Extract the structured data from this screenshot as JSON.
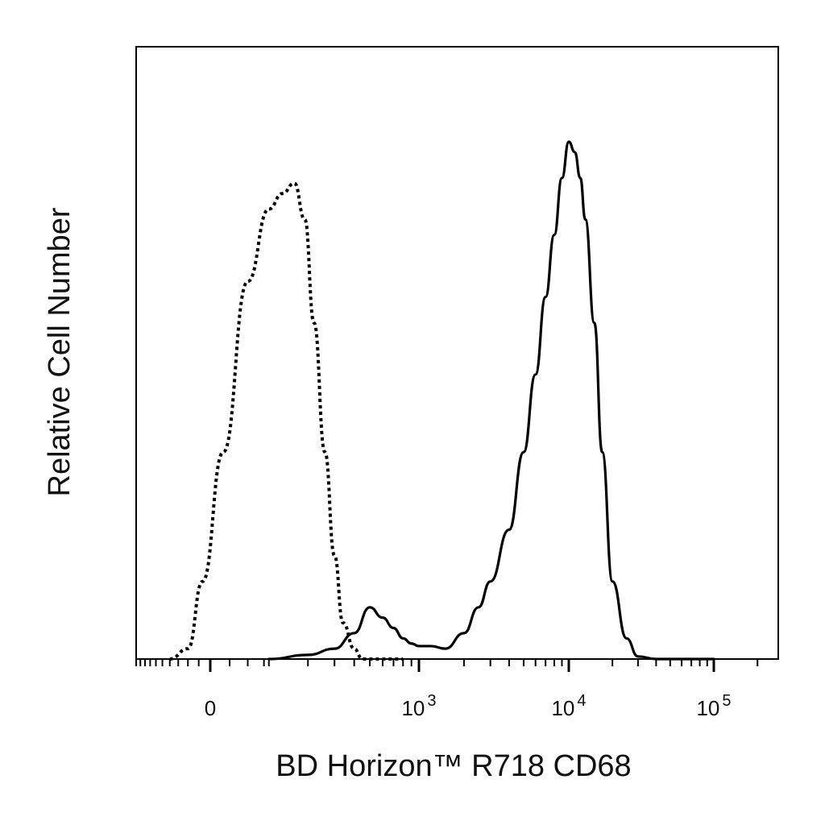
{
  "chart_data": {
    "type": "line",
    "title": "",
    "xlabel": "BD Horizon™ R718 CD68",
    "ylabel": "Relative Cell Number",
    "x_scale": "biexponential",
    "xlim": [
      -300,
      200000
    ],
    "ylim": [
      0,
      1
    ],
    "grid": false,
    "x_tick_labels": [
      {
        "value": 0,
        "base": "0",
        "exp": ""
      },
      {
        "value": 1000,
        "base": "10",
        "exp": "3"
      },
      {
        "value": 10000,
        "base": "10",
        "exp": "4"
      },
      {
        "value": 100000,
        "base": "10",
        "exp": "5"
      }
    ],
    "series": [
      {
        "style": "dotted",
        "x": [
          -120,
          -60,
          -20,
          20,
          60,
          100,
          130,
          160,
          190,
          220,
          260,
          300,
          340,
          400,
          450,
          520,
          600,
          700,
          800
        ],
        "y": [
          0,
          0.02,
          0.15,
          0.4,
          0.73,
          0.87,
          0.9,
          0.92,
          0.85,
          0.65,
          0.4,
          0.2,
          0.07,
          0.02,
          0,
          0,
          0,
          0,
          0
        ]
      },
      {
        "style": "solid",
        "x": [
          100,
          200,
          300,
          400,
          500,
          600,
          700,
          800,
          900,
          1000,
          1200,
          1500,
          2000,
          2500,
          3000,
          4000,
          5000,
          6000,
          7000,
          8000,
          9000,
          10000,
          11000,
          12000,
          13000,
          15000,
          17000,
          20000,
          25000,
          30000,
          40000,
          60000,
          100000
        ],
        "y": [
          0,
          0.008,
          0.02,
          0.05,
          0.1,
          0.08,
          0.06,
          0.04,
          0.03,
          0.025,
          0.025,
          0.02,
          0.05,
          0.1,
          0.15,
          0.25,
          0.4,
          0.55,
          0.7,
          0.82,
          0.93,
          1.0,
          0.98,
          0.93,
          0.85,
          0.65,
          0.4,
          0.15,
          0.04,
          0.005,
          0,
          0,
          0
        ]
      }
    ]
  }
}
